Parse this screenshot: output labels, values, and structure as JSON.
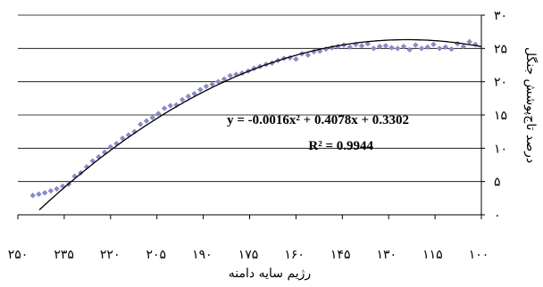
{
  "chart_data": {
    "type": "scatter",
    "xlabel": "رژیم سایه دامنه",
    "ylabel": "درصد تاج‌پوشش جنگل",
    "x_reversed": true,
    "xlim": [
      100,
      255
    ],
    "ylim": [
      0,
      30
    ],
    "x_ticks": [
      "۱۰۰",
      "۱۱۵",
      "۱۳۰",
      "۱۴۵",
      "۱۶۰",
      "۱۷۵",
      "۱۹۰",
      "۲۰۵",
      "۲۲۰",
      "۲۳۵",
      "۲۵۰"
    ],
    "y_ticks": [
      "۰",
      "۵",
      "۱۰",
      "۱۵",
      "۲۰",
      "۲۵",
      "۳۰"
    ],
    "grid": "horizontal",
    "marker": "diamond",
    "marker_color": "#8a8ac8",
    "trendline_color": "#000000",
    "equation": "y = -0.0016x² + 0.4078x + 0.3302",
    "r_squared": "R² = 0.9944",
    "trendline": {
      "type": "polynomial",
      "a": -0.0016,
      "b": 0.4078,
      "c": 0.3302,
      "x_range": [
        1,
        153
      ]
    },
    "series": [
      {
        "x": [
          250,
          248,
          246,
          244,
          242,
          240,
          238,
          236,
          234,
          232,
          230,
          228,
          226,
          224,
          222,
          220,
          218,
          216,
          214,
          212,
          210,
          208,
          206,
          204,
          202,
          200,
          198,
          196,
          194,
          192,
          190,
          188,
          186,
          184,
          182,
          180,
          178,
          176,
          174,
          172,
          170,
          168,
          166,
          164,
          162,
          160,
          158,
          156,
          154,
          152,
          150,
          148,
          146,
          144,
          142,
          140,
          138,
          136,
          134,
          132,
          130,
          128,
          126,
          124,
          122,
          120,
          118,
          116,
          114,
          112,
          110,
          108,
          106,
          104,
          102
        ],
        "y": [
          2.9,
          3.1,
          3.3,
          3.6,
          3.9,
          4.3,
          4.6,
          5.8,
          6.3,
          7.2,
          8.1,
          8.7,
          9.4,
          10.2,
          10.7,
          11.5,
          12.0,
          12.5,
          13.6,
          14.1,
          14.6,
          15.2,
          16.0,
          16.4,
          16.5,
          17.3,
          17.8,
          18.2,
          18.8,
          19.3,
          19.6,
          20.0,
          20.4,
          20.9,
          21.1,
          21.3,
          21.6,
          22.0,
          22.3,
          22.6,
          22.8,
          23.2,
          23.5,
          23.6,
          23.4,
          24.2,
          24.0,
          24.5,
          24.6,
          24.9,
          25.1,
          25.3,
          25.5,
          25.2,
          25.6,
          25.4,
          25.7,
          25.0,
          25.3,
          25.4,
          25.1,
          25.0,
          25.3,
          24.8,
          25.5,
          25.0,
          25.2,
          25.6,
          25.0,
          25.2,
          24.9,
          25.7,
          25.3,
          26.0,
          25.6
        ]
      }
    ]
  }
}
